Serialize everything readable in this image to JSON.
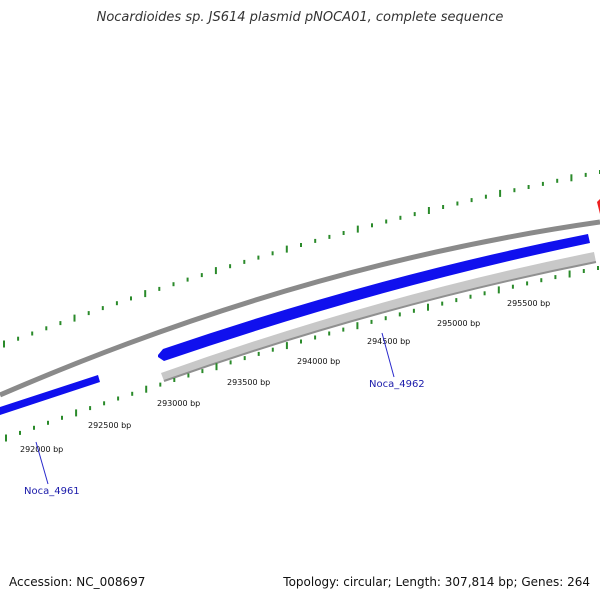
{
  "title": "Nocardioides sp. JS614 plasmid pNOCA01, complete sequence",
  "footer": {
    "accession": "Accession: NC_008697",
    "summary": "Topology: circular; Length: 307,814 bp; Genes: 264"
  },
  "colors": {
    "backbone": "#8a8a8a",
    "gene_forward": "#1010ee",
    "gene_reverse_strand_track": "#c4c4c4",
    "gene_highlight": "#ee2020",
    "tick": "#2a8a2a",
    "gene_label": "#1a1aaa"
  },
  "tick_labels": [
    "292000 bp",
    "292500 bp",
    "293000 bp",
    "293500 bp",
    "294000 bp",
    "294500 bp",
    "295000 bp",
    "295500 bp"
  ],
  "gene_labels": [
    "Noca_4961",
    "Noca_4962"
  ]
}
